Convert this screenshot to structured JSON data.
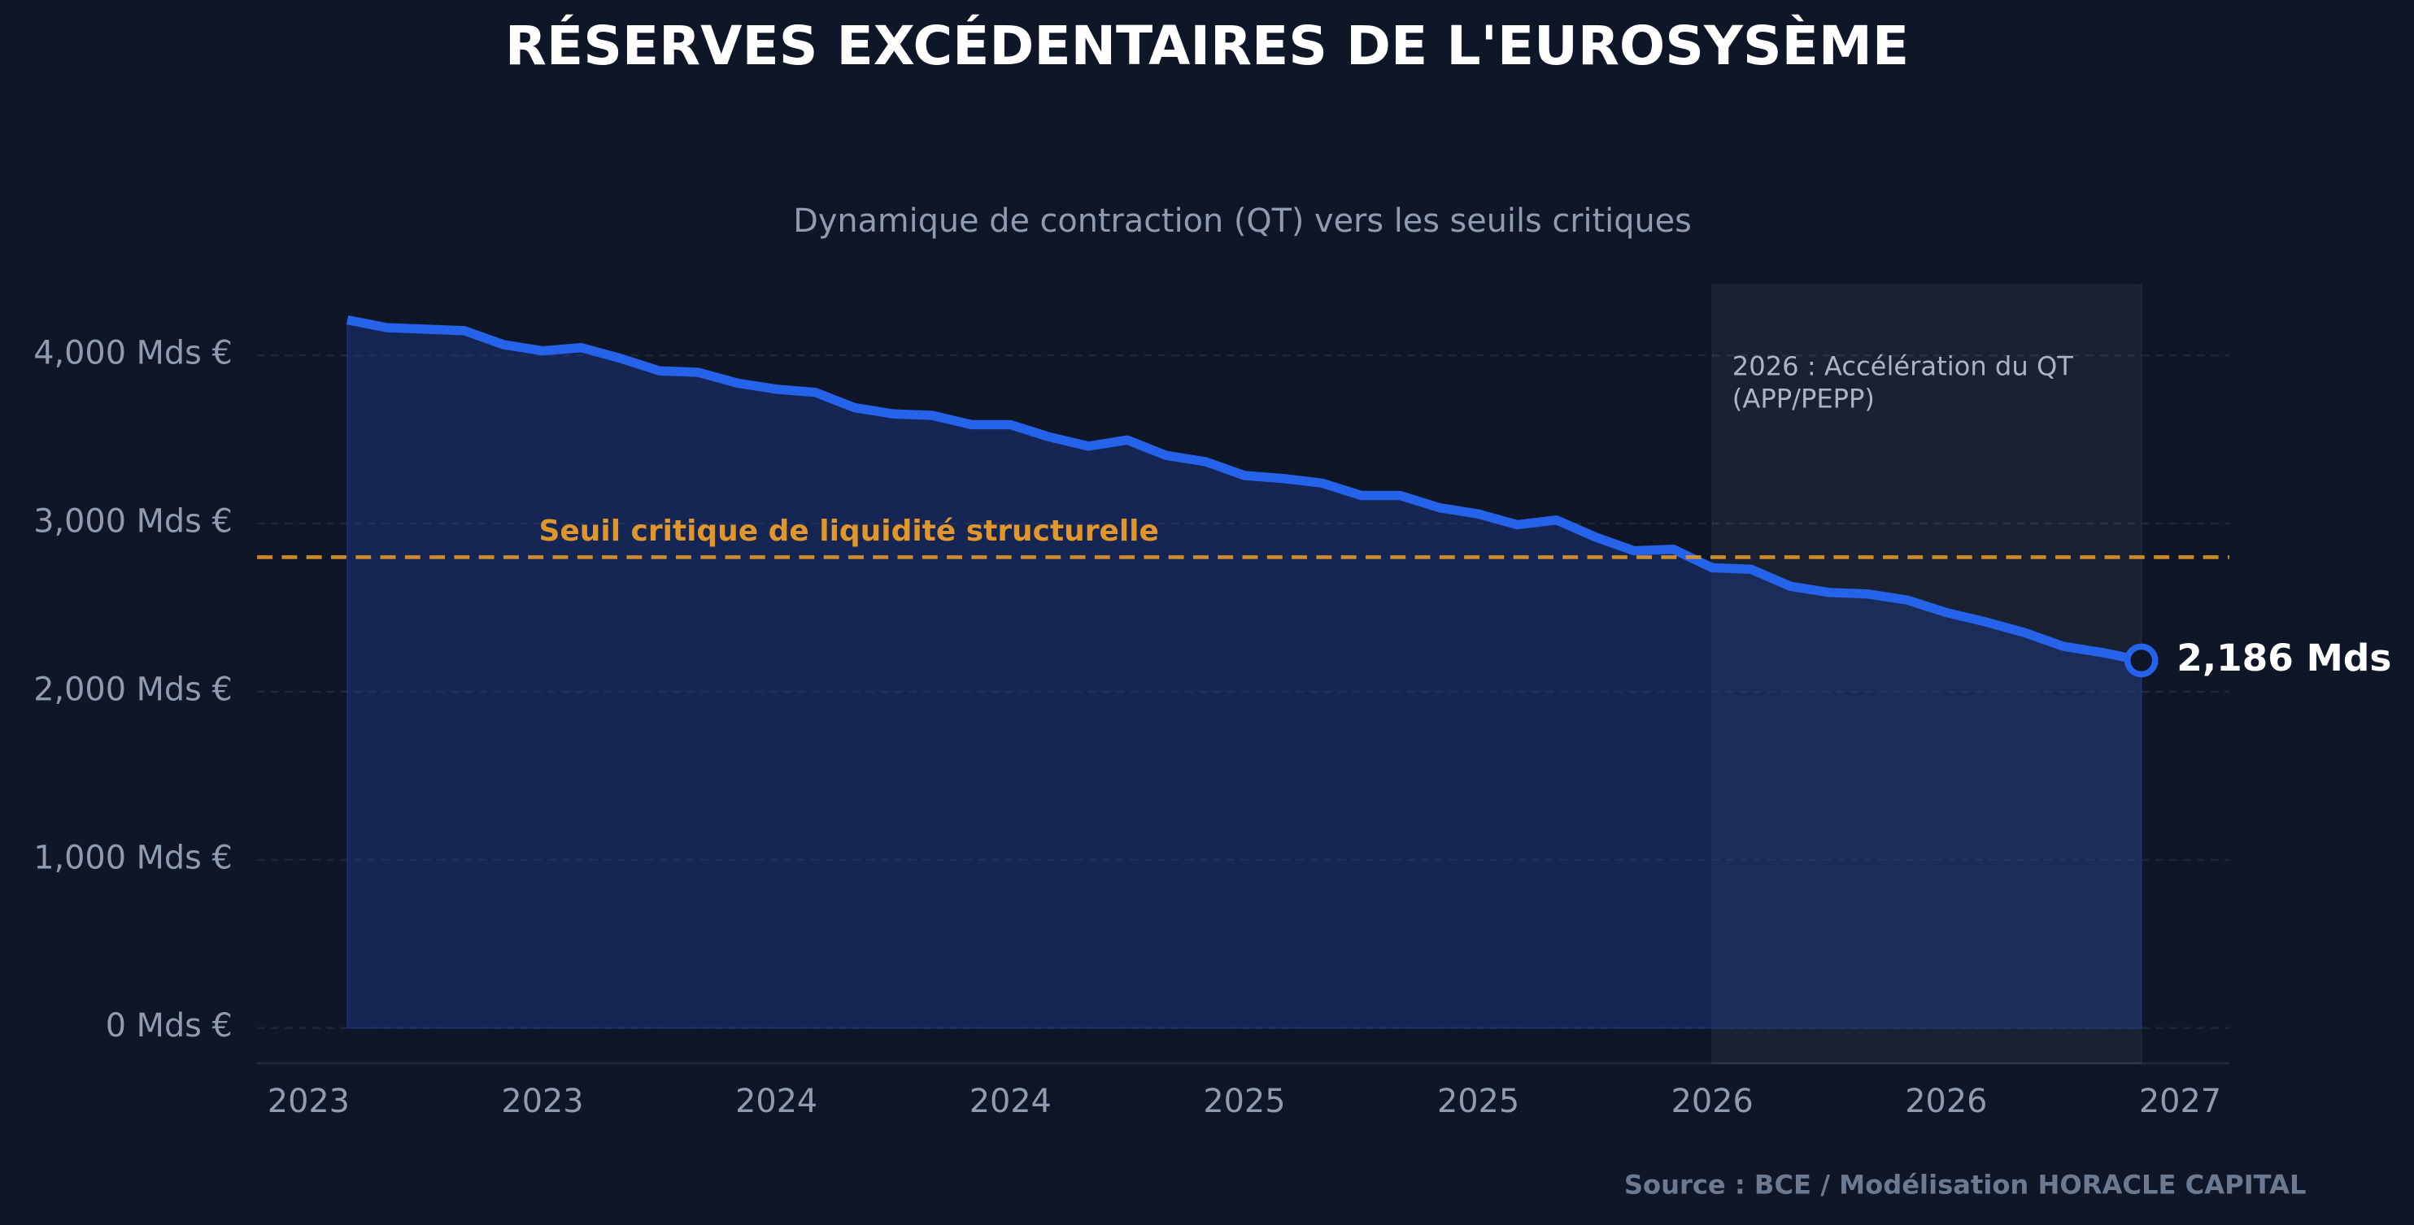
{
  "chart_data": {
    "type": "line",
    "title": "RÉSERVES EXCÉDENTAIRES DE L'EUROSYSÈME",
    "subtitle": "Dynamique de contraction (QT) vers les seuils critiques",
    "source": "Source : BCE / Modélisation HORACLE CAPITAL",
    "x": [
      2023.083,
      2023.167,
      2023.25,
      2023.333,
      2023.417,
      2023.5,
      2023.583,
      2023.667,
      2023.75,
      2023.833,
      2023.917,
      2024,
      2024.083,
      2024.167,
      2024.25,
      2024.333,
      2024.417,
      2024.5,
      2024.583,
      2024.667,
      2024.75,
      2024.833,
      2024.917,
      2025,
      2025.083,
      2025.167,
      2025.25,
      2025.333,
      2025.417,
      2025.5,
      2025.583,
      2025.667,
      2025.75,
      2025.833,
      2025.917,
      2026,
      2026.083,
      2026.167,
      2026.25,
      2026.333,
      2026.417,
      2026.5,
      2026.583,
      2026.667,
      2026.75,
      2026.833,
      2026.917
    ],
    "series": [
      {
        "color": "#2563eb",
        "values": [
          4211,
          4165,
          4156,
          4147,
          4064,
          4027,
          4046,
          3982,
          3908,
          3899,
          3835,
          3799,
          3780,
          3689,
          3652,
          3643,
          3588,
          3588,
          3515,
          3460,
          3497,
          3405,
          3368,
          3286,
          3268,
          3240,
          3167,
          3167,
          3094,
          3057,
          2993,
          3021,
          2920,
          2838,
          2847,
          2737,
          2728,
          2627,
          2590,
          2581,
          2545,
          2471,
          2416,
          2352,
          2270,
          2233,
          2186
        ]
      }
    ],
    "end_label": "2,186 Mds",
    "threshold": {
      "value": 2800,
      "label": "Seuil critique de liquidité structurelle",
      "color": "#e0962a"
    },
    "shaded_span": [
      2026,
      2026.917
    ],
    "shaded_label": [
      "2026 : Accélération du QT",
      "(APP/PEPP)"
    ],
    "xlim": [
      2022.89,
      2027.105
    ],
    "xticks": [
      {
        "value": 2023,
        "label": "2023"
      },
      {
        "value": 2023.5,
        "label": "2023"
      },
      {
        "value": 2024,
        "label": "2024"
      },
      {
        "value": 2024.5,
        "label": "2024"
      },
      {
        "value": 2025,
        "label": "2025"
      },
      {
        "value": 2025.5,
        "label": "2025"
      },
      {
        "value": 2026,
        "label": "2026"
      },
      {
        "value": 2026.5,
        "label": "2026"
      },
      {
        "value": 2027,
        "label": "2027"
      }
    ],
    "ylim": [
      -210,
      4420
    ],
    "yticks": [
      {
        "value": 0,
        "label": "0 Mds €"
      },
      {
        "value": 1000,
        "label": "1,000 Mds €"
      },
      {
        "value": 2000,
        "label": "2,000 Mds €"
      },
      {
        "value": 3000,
        "label": "3,000 Mds €"
      },
      {
        "value": 4000,
        "label": "4,000 Mds €"
      }
    ],
    "grid": true
  }
}
